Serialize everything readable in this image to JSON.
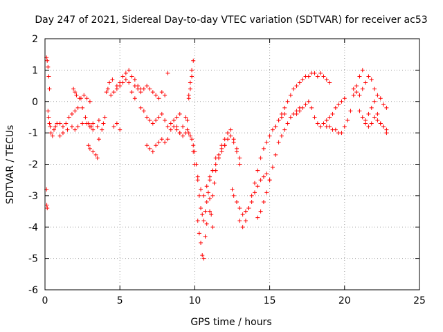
{
  "chart_data": {
    "type": "scatter",
    "title": "Day 247 of 2021, Sidereal Day-to-day VTEC variation (SDTVAR) for receiver ac53",
    "xlabel": "GPS time / hours",
    "ylabel": "SDTVAR / TECUs",
    "xlim": [
      0,
      25
    ],
    "ylim": [
      -6,
      2
    ],
    "xticks": [
      0,
      5,
      10,
      15,
      20,
      25
    ],
    "yticks": [
      -6,
      -5,
      -4,
      -3,
      -2,
      -1,
      0,
      1,
      2
    ],
    "grid": true,
    "marker": "+",
    "color": "#ff0000",
    "series": [
      {
        "name": "SDTVAR",
        "x": [
          0.1,
          0.15,
          0.2,
          0.25,
          0.3,
          0.1,
          0.12,
          0.15,
          0.2,
          0.25,
          0.3,
          0.35,
          0.4,
          0.5,
          0.6,
          0.7,
          0.8,
          1.0,
          1.2,
          1.4,
          1.6,
          1.8,
          2.0,
          2.2,
          2.4,
          2.6,
          2.8,
          3.0,
          1.0,
          1.2,
          1.5,
          1.8,
          2.0,
          2.2,
          2.5,
          2.8,
          3.0,
          3.2,
          1.9,
          2.0,
          2.1,
          2.3,
          2.5,
          2.7,
          2.9,
          3.0,
          3.1,
          3.2,
          2.9,
          3.0,
          3.2,
          3.5,
          3.6,
          3.8,
          3.9,
          4.0,
          3.4,
          3.5,
          3.6,
          4.1,
          4.2,
          4.3,
          4.5,
          4.8,
          5.0,
          5.2,
          5.4,
          5.6,
          5.8,
          6.0,
          6.2,
          6.4,
          4.4,
          4.6,
          4.8,
          5.0,
          5.2,
          5.4,
          5.6,
          5.8,
          6.0,
          4.6,
          4.8,
          5.0,
          6.0,
          6.2,
          6.4,
          6.6,
          6.8,
          7.0,
          7.2,
          7.4,
          7.6,
          7.8,
          8.0,
          6.4,
          6.6,
          6.8,
          7.0,
          7.2,
          7.4,
          7.6,
          7.8,
          8.0,
          8.2,
          8.4,
          8.6,
          8.8,
          9.0,
          6.8,
          7.0,
          7.2,
          7.4,
          7.6,
          7.8,
          8.0,
          8.2,
          8.4,
          8.6,
          8.8,
          9.0,
          9.2,
          9.4,
          9.6,
          9.7,
          9.8,
          9.9,
          8.2,
          8.8,
          9.0,
          9.2,
          9.4,
          9.5,
          9.6,
          9.7,
          9.8,
          9.5,
          9.6,
          9.7,
          9.8,
          9.9,
          10.0,
          10.1,
          10.2,
          10.3,
          10.4,
          10.5,
          10.6,
          10.7,
          10.8,
          10.9,
          11.0,
          11.1,
          11.2,
          9.9,
          10.0,
          10.2,
          10.4,
          10.6,
          10.8,
          11.0,
          11.2,
          11.4,
          11.6,
          11.8,
          12.0,
          10.2,
          10.3,
          10.4,
          10.5,
          10.6,
          10.7,
          10.8,
          11.0,
          11.2,
          11.3,
          11.4,
          11.6,
          11.8,
          12.0,
          12.2,
          12.4,
          12.6,
          12.8,
          13.0,
          11.0,
          11.2,
          11.4,
          11.6,
          11.8,
          12.0,
          12.2,
          12.4,
          12.6,
          12.8,
          13.0,
          12.5,
          12.6,
          12.8,
          13.0,
          13.2,
          13.4,
          13.6,
          13.8,
          14.0,
          14.2,
          14.4,
          14.6,
          14.8,
          15.0,
          13.0,
          13.2,
          13.4,
          13.6,
          13.8,
          14.0,
          14.2,
          14.4,
          14.6,
          14.8,
          15.0,
          15.2,
          15.4,
          15.6,
          15.8,
          16.0,
          14.2,
          14.4,
          14.6,
          14.8,
          15.0,
          15.2,
          15.4,
          15.6,
          15.8,
          16.0,
          16.2,
          16.4,
          16.6,
          16.8,
          17.0,
          15.4,
          15.6,
          15.8,
          16.0,
          16.2,
          16.4,
          16.6,
          16.8,
          17.0,
          17.2,
          17.4,
          17.6,
          17.8,
          18.0,
          18.2,
          18.4,
          18.6,
          18.8,
          19.0,
          16.8,
          17.0,
          17.2,
          17.4,
          17.6,
          17.8,
          18.0,
          18.2,
          18.4,
          18.6,
          18.8,
          19.0,
          19.2,
          19.4,
          19.6,
          19.8,
          20.0,
          18.8,
          19.0,
          19.2,
          19.4,
          19.6,
          19.8,
          20.0,
          20.2,
          20.4,
          20.6,
          20.8,
          21.0,
          21.2,
          20.6,
          20.8,
          21.0,
          21.2,
          21.4,
          21.6,
          21.8,
          22.0,
          22.2,
          22.4,
          22.6,
          22.8,
          21.0,
          21.2,
          21.4,
          21.6,
          21.8,
          22.0,
          22.2,
          22.4,
          22.6,
          22.8,
          21.4,
          21.6,
          21.8,
          22.0,
          22.2,
          22.4,
          22.6,
          22.8
        ],
        "y": [
          1.4,
          1.3,
          1.1,
          0.8,
          0.4,
          -2.8,
          -3.3,
          -3.4,
          -0.3,
          -0.5,
          -0.7,
          -0.8,
          -1.0,
          -1.1,
          -0.9,
          -0.8,
          -0.7,
          -0.7,
          -0.8,
          -0.7,
          -0.5,
          -0.4,
          -0.3,
          -0.2,
          0.1,
          0.2,
          0.1,
          0.0,
          -1.1,
          -1.0,
          -0.9,
          -0.8,
          -0.9,
          -0.8,
          -0.7,
          -0.7,
          -0.8,
          -0.7,
          0.4,
          0.3,
          0.2,
          0.1,
          -0.2,
          -0.5,
          -0.7,
          -0.8,
          -0.8,
          -0.9,
          -1.4,
          -1.5,
          -1.6,
          -1.8,
          -1.2,
          -0.9,
          -0.7,
          -0.5,
          -1.7,
          -0.8,
          -0.6,
          0.3,
          0.4,
          0.6,
          0.7,
          0.5,
          0.6,
          0.8,
          0.9,
          1.0,
          0.8,
          0.7,
          0.5,
          0.4,
          0.2,
          0.3,
          0.4,
          0.5,
          0.6,
          0.7,
          0.6,
          0.3,
          0.1,
          -0.8,
          -0.7,
          -0.9,
          0.5,
          0.4,
          0.3,
          0.4,
          0.5,
          0.4,
          0.3,
          0.2,
          0.1,
          0.3,
          0.2,
          -0.2,
          -0.3,
          -0.5,
          -0.6,
          -0.7,
          -0.6,
          -0.5,
          -0.4,
          -0.6,
          -0.8,
          -0.7,
          -0.6,
          -0.5,
          -0.4,
          -1.4,
          -1.5,
          -1.6,
          -1.4,
          -1.3,
          -1.2,
          -1.3,
          -1.2,
          -0.9,
          -0.8,
          -0.9,
          -1.0,
          -0.8,
          -0.5,
          0.2,
          0.6,
          1.0,
          1.3,
          0.9,
          -0.8,
          -1.0,
          -1.1,
          -1.0,
          -0.6,
          0.1,
          0.4,
          0.8,
          -0.9,
          -1.0,
          -1.1,
          -1.2,
          -1.4,
          -1.6,
          -2.0,
          -2.5,
          -3.0,
          -3.4,
          -3.6,
          -3.8,
          -3.5,
          -3.2,
          -2.9,
          -3.1,
          -3.6,
          -4.0,
          -1.6,
          -2.0,
          -2.4,
          -2.8,
          -3.0,
          -2.7,
          -2.5,
          -2.2,
          -1.8,
          -1.7,
          -1.5,
          -1.4,
          -3.8,
          -4.2,
          -4.5,
          -4.9,
          -5.0,
          -4.3,
          -3.9,
          -3.5,
          -3.0,
          -2.6,
          -2.2,
          -1.8,
          -1.4,
          -1.2,
          -1.0,
          -0.9,
          -1.2,
          -1.5,
          -1.8,
          -2.4,
          -2.2,
          -2.0,
          -1.8,
          -1.6,
          -1.4,
          -1.2,
          -1.1,
          -1.3,
          -1.6,
          -2.0,
          -2.8,
          -3.0,
          -3.2,
          -3.4,
          -3.6,
          -3.5,
          -3.4,
          -3.2,
          -2.9,
          -2.7,
          -2.5,
          -2.4,
          -2.3,
          -2.5,
          -3.8,
          -4.0,
          -3.8,
          -3.4,
          -3.0,
          -2.6,
          -2.2,
          -1.8,
          -1.5,
          -1.3,
          -1.1,
          -0.9,
          -0.8,
          -0.6,
          -0.5,
          -0.4,
          -3.7,
          -3.5,
          -3.2,
          -2.9,
          -2.5,
          -2.1,
          -1.7,
          -1.3,
          -1.1,
          -0.9,
          -0.7,
          -0.5,
          -0.4,
          -0.3,
          -0.2,
          -0.8,
          -0.6,
          -0.4,
          -0.2,
          0.0,
          0.2,
          0.4,
          0.5,
          0.6,
          0.7,
          0.8,
          0.8,
          0.9,
          0.9,
          0.8,
          0.9,
          0.8,
          0.7,
          0.6,
          -0.4,
          -0.3,
          -0.2,
          -0.1,
          0.0,
          -0.2,
          -0.5,
          -0.7,
          -0.8,
          -0.7,
          -0.6,
          -0.5,
          -0.4,
          -0.2,
          -0.1,
          0.0,
          0.1,
          -0.8,
          -0.8,
          -0.9,
          -0.9,
          -1.0,
          -1.0,
          -0.8,
          -0.6,
          -0.3,
          0.2,
          0.5,
          0.8,
          1.0,
          0.4,
          0.3,
          0.2,
          0.4,
          0.6,
          0.8,
          0.7,
          0.4,
          0.2,
          0.1,
          -0.1,
          -0.2,
          -0.3,
          -0.5,
          -0.7,
          -0.4,
          -0.2,
          0.0,
          -0.4,
          -0.7,
          -0.8,
          -0.9,
          -0.6,
          -0.8,
          -0.7,
          -0.5,
          -0.6,
          -0.7,
          -0.8,
          -1.0
        ]
      }
    ]
  }
}
